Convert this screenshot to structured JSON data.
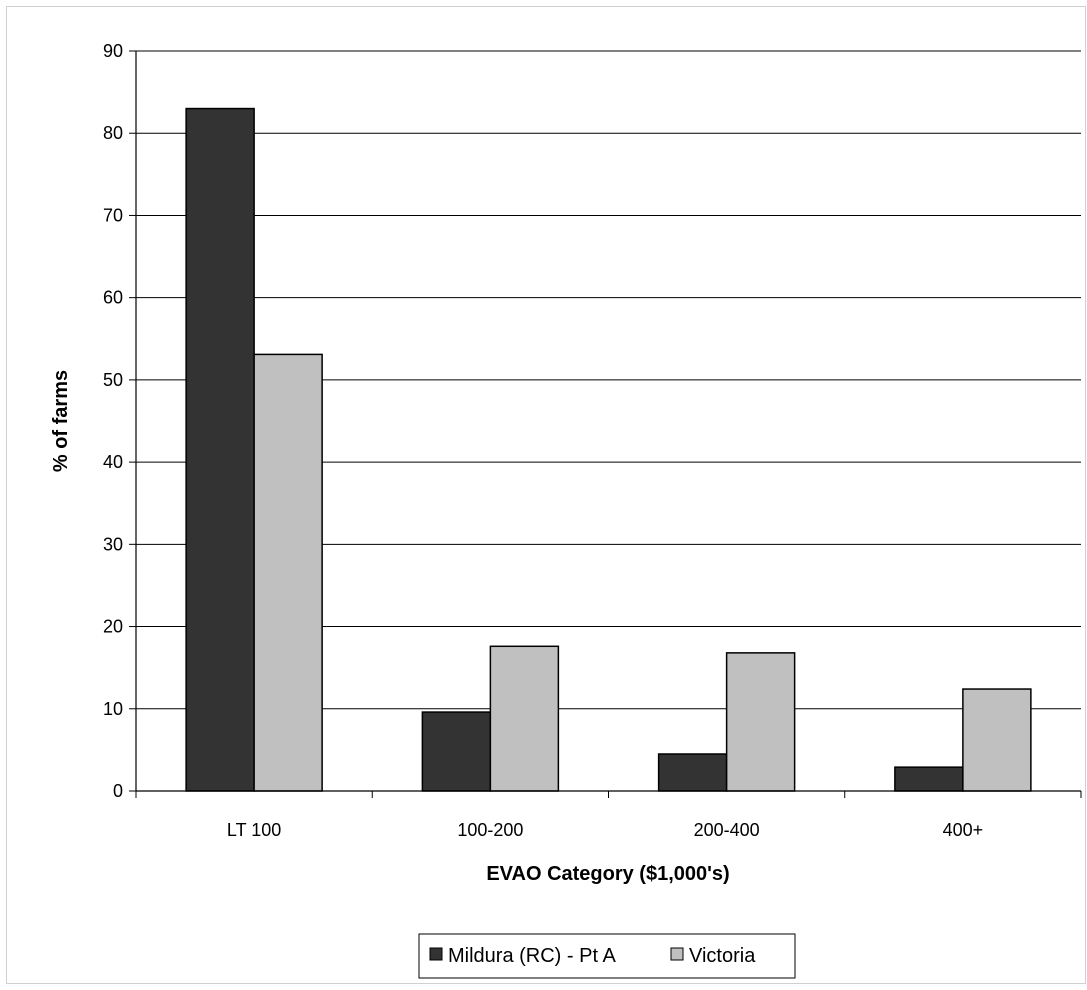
{
  "chart_data": {
    "type": "bar",
    "title": "",
    "xlabel": "EVAO Category ($1,000's)",
    "ylabel": "% of farms",
    "ylim": [
      0,
      90
    ],
    "yticks": [
      0,
      10,
      20,
      30,
      40,
      50,
      60,
      70,
      80,
      90
    ],
    "grid": true,
    "legend_position": "bottom",
    "categories": [
      "LT 100",
      "100-200",
      "200-400",
      "400+"
    ],
    "series": [
      {
        "name": "Mildura (RC) - Pt A",
        "color": "#333333",
        "values": [
          83.0,
          9.6,
          4.5,
          2.9
        ]
      },
      {
        "name": "Victoria",
        "color": "#c0c0c0",
        "values": [
          53.1,
          17.6,
          16.8,
          12.4
        ]
      }
    ]
  }
}
